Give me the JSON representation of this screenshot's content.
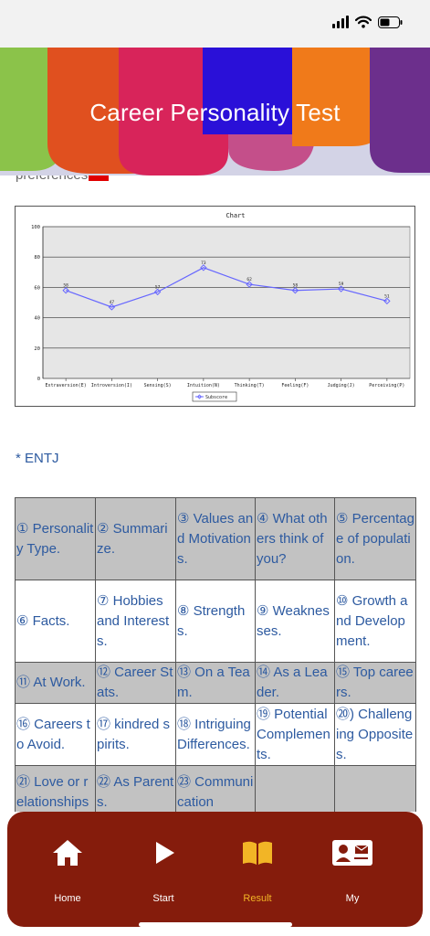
{
  "header": {
    "title": "Career Personality Test"
  },
  "intro": {
    "text": "preferences"
  },
  "chart_data": {
    "type": "line",
    "title": "Chart",
    "categories": [
      "Extraversion(E)",
      "Introversion(I)",
      "Sensing(S)",
      "Intuition(N)",
      "Thinking(T)",
      "Feeling(F)",
      "Judging(J)",
      "Perceiving(P)"
    ],
    "series": [
      {
        "name": "Subscore",
        "values": [
          58,
          47,
          57,
          73,
          62,
          58,
          59,
          51
        ]
      }
    ],
    "ylim": [
      0,
      100
    ],
    "yticks": [
      0,
      20,
      40,
      60,
      80,
      100
    ],
    "grid": true,
    "legend": "bottom-center",
    "colors": {
      "line": "#6666ff",
      "plot_bg": "#e6e6e6"
    }
  },
  "result": {
    "type_label": "* ENTJ"
  },
  "topics": [
    [
      "① Personality Type.",
      "② Summarize.",
      "③ Values and Motivations.",
      "④ What others think of you?",
      "⑤ Percentage of population."
    ],
    [
      "⑥ Facts.",
      "⑦ Hobbies and Interests.",
      "⑧ Strengths.",
      "⑨ Weaknesses.",
      "⑩ Growth and Development."
    ],
    [
      "⑪ At Work.",
      "⑫ Career Stats.",
      "⑬ On a Team.",
      "⑭ As a Leader.",
      "⑮ Top careers."
    ],
    [
      "⑯ Careers to Avoid.",
      "⑰ kindred spirits.",
      "⑱ Intriguing Differences.",
      "⑲ Potential Complements.",
      "⑳) Challenging Opposites."
    ],
    [
      "㉑ Love or relationships",
      "㉒ As Parents.",
      "㉓ Communication",
      "",
      ""
    ]
  ],
  "tabbar": {
    "items": [
      {
        "label": "Home",
        "icon": "home-icon"
      },
      {
        "label": "Start",
        "icon": "play-icon"
      },
      {
        "label": "Result",
        "icon": "book-icon"
      },
      {
        "label": "My",
        "icon": "profile-card-icon"
      }
    ],
    "active_color": "#f2b526"
  }
}
